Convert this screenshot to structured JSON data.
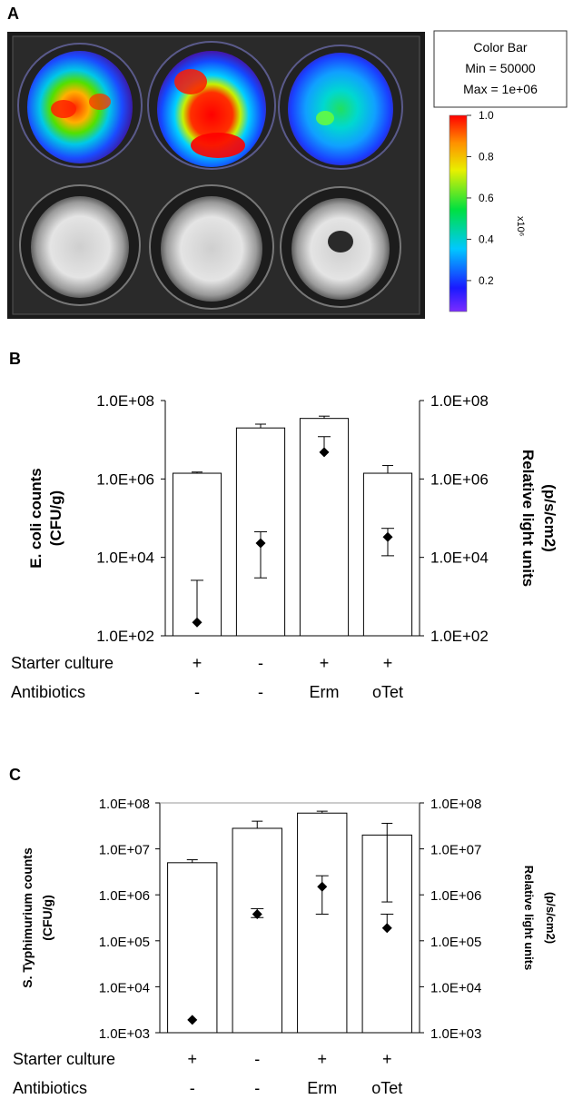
{
  "panels": {
    "a": "A",
    "b": "B",
    "c": "C"
  },
  "color_bar": {
    "title": "Color Bar",
    "min_label": "Min = 50000",
    "max_label": "Max = 1e+06",
    "unit": "x10⁶",
    "ticks": [
      "1.0",
      "0.8",
      "0.6",
      "0.4",
      "0.2"
    ],
    "tick_values": [
      1.0,
      0.8,
      0.6,
      0.4,
      0.2
    ],
    "range": [
      0.05,
      1.0
    ]
  },
  "chart_data": [
    {
      "type": "bar",
      "panel": "B",
      "ylabel": "E. coli counts (CFU/g)",
      "ylabel_lines": [
        "E. coli counts",
        "(CFU/g)"
      ],
      "y2label": "Relative light units (p/s/cm2)",
      "y2label_lines": [
        "Relative light units",
        "(p/s/cm2)"
      ],
      "yscale": "log",
      "ylim": [
        100,
        100000000
      ],
      "yticks": [
        100,
        10000,
        1000000,
        100000000
      ],
      "ytick_labels": [
        "1.0E+02",
        "1.0E+04",
        "1.0E+06",
        "1.0E+08"
      ],
      "rows": [
        {
          "label": "Starter culture",
          "values": [
            "+",
            "-",
            "+",
            "+"
          ]
        },
        {
          "label": "Antibiotics",
          "values": [
            "-",
            "-",
            "Erm",
            "oTet"
          ]
        }
      ],
      "series": [
        {
          "kind": "bar",
          "axis": "left",
          "values": [
            1400000,
            20000000,
            35000000,
            1400000
          ],
          "err_upper": [
            1500000,
            25000000,
            40000000,
            2200000
          ]
        },
        {
          "kind": "point",
          "axis": "right",
          "values": [
            220,
            23000,
            4800000,
            33000
          ],
          "err_lower": [
            220,
            3000,
            4800000,
            11000
          ],
          "err_upper": [
            2600,
            45000,
            12000000,
            55000
          ]
        }
      ],
      "grid": false
    },
    {
      "type": "bar",
      "panel": "C",
      "ylabel": "S. Typhimurium counts (CFU/g)",
      "ylabel_lines": [
        "S. Typhimurium counts",
        "(CFU/g)"
      ],
      "y2label": "Relative light units (p/s/cm2)",
      "y2label_lines": [
        "Relative light units",
        "(p/s/cm2)"
      ],
      "yscale": "log",
      "ylim": [
        1000,
        100000000
      ],
      "yticks": [
        1000,
        10000,
        100000,
        1000000,
        10000000,
        100000000
      ],
      "ytick_labels": [
        "1.0E+03",
        "1.0E+04",
        "1.0E+05",
        "1.0E+06",
        "1.0E+07",
        "1.0E+08"
      ],
      "rows": [
        {
          "label": "Starter culture",
          "values": [
            "+",
            "-",
            "+",
            "+"
          ]
        },
        {
          "label": "Antibiotics",
          "values": [
            "-",
            "-",
            "Erm",
            "oTet"
          ]
        }
      ],
      "series": [
        {
          "kind": "bar",
          "axis": "left",
          "values": [
            5000000,
            28000000,
            60000000,
            20000000
          ],
          "err_lower": [
            5000000,
            28000000,
            60000000,
            700000
          ],
          "err_upper": [
            5800000,
            40000000,
            66000000,
            36000000
          ]
        },
        {
          "kind": "point",
          "axis": "right",
          "values": [
            1900,
            380000,
            1500000,
            190000
          ],
          "err_lower": [
            1900,
            320000,
            380000,
            190000
          ],
          "err_upper": [
            1900,
            500000,
            2600000,
            380000
          ]
        }
      ],
      "grid": false
    }
  ]
}
